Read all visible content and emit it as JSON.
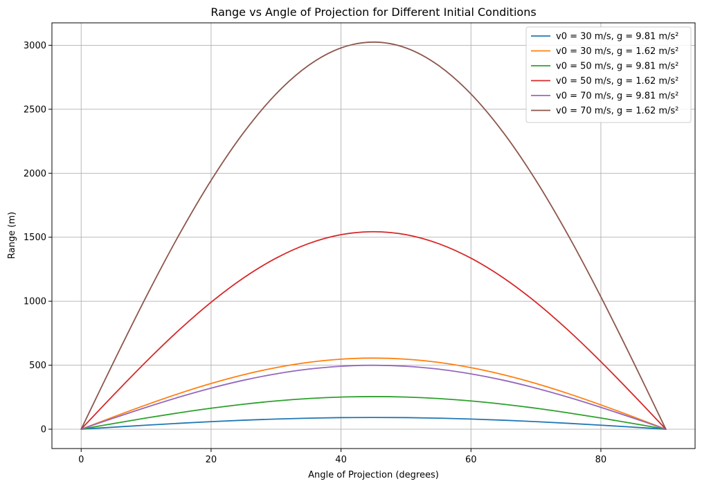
{
  "chart_data": {
    "type": "line",
    "title": "Range vs Angle of Projection for Different Initial Conditions",
    "xlabel": "Angle of Projection (degrees)",
    "ylabel": "Range (m)",
    "xlim": [
      -4.5,
      94.5
    ],
    "ylim": [
      -151.2,
      3175.2
    ],
    "xticks": [
      0,
      20,
      40,
      60,
      80
    ],
    "xtick_labels": [
      "0",
      "20",
      "40",
      "60",
      "80"
    ],
    "yticks": [
      0,
      500,
      1000,
      1500,
      2000,
      2500,
      3000
    ],
    "ytick_labels": [
      "0",
      "500",
      "1000",
      "1500",
      "2000",
      "2500",
      "3000"
    ],
    "grid": true,
    "legend_position": "top-right",
    "x": [
      0,
      5,
      10,
      15,
      20,
      25,
      30,
      35,
      40,
      45,
      50,
      55,
      60,
      65,
      70,
      75,
      80,
      85,
      90
    ],
    "series": [
      {
        "name": "v0 = 30 m/s, g = 9.81 m/s²",
        "color": "#1f77b4",
        "values": [
          0,
          15.9,
          31.4,
          45.9,
          59.0,
          70.3,
          79.5,
          86.2,
          90.4,
          91.7,
          90.4,
          86.2,
          79.5,
          70.3,
          59.0,
          45.9,
          31.4,
          15.9,
          0
        ]
      },
      {
        "name": "v0 = 30 m/s, g = 1.62 m/s²",
        "color": "#ff7f0e",
        "values": [
          0,
          96.5,
          190.0,
          277.8,
          357.2,
          425.7,
          481.1,
          522.1,
          547.2,
          555.6,
          547.2,
          522.1,
          481.1,
          425.7,
          357.2,
          277.8,
          190.0,
          96.5,
          0
        ]
      },
      {
        "name": "v0 = 50 m/s, g = 9.81 m/s²",
        "color": "#2ca02c",
        "values": [
          0,
          44.3,
          87.2,
          127.4,
          163.8,
          195.2,
          220.7,
          239.5,
          251.0,
          254.8,
          251.0,
          239.5,
          220.7,
          195.2,
          163.8,
          127.4,
          87.2,
          44.3,
          0
        ]
      },
      {
        "name": "v0 = 50 m/s, g = 1.62 m/s²",
        "color": "#d62728",
        "values": [
          0,
          268.0,
          527.8,
          771.6,
          992.0,
          1182.2,
          1336.5,
          1450.2,
          1520.0,
          1543.2,
          1520.0,
          1450.2,
          1336.5,
          1182.2,
          992.0,
          771.6,
          527.8,
          268.0,
          0
        ]
      },
      {
        "name": "v0 = 70 m/s, g = 9.81 m/s²",
        "color": "#9467bd",
        "values": [
          0,
          86.7,
          170.8,
          249.7,
          321.0,
          382.6,
          432.5,
          469.3,
          491.9,
          499.5,
          491.9,
          469.3,
          432.5,
          382.6,
          321.0,
          249.7,
          170.8,
          86.7,
          0
        ]
      },
      {
        "name": "v0 = 70 m/s, g = 1.62 m/s²",
        "color": "#8c564b",
        "values": [
          0,
          525.3,
          1034.5,
          1512.3,
          1944.2,
          2317.0,
          2619.6,
          2842.4,
          2979.2,
          3024.7,
          2979.2,
          2842.4,
          2619.6,
          2317.0,
          1944.2,
          1512.3,
          1034.5,
          525.3,
          0
        ]
      }
    ]
  }
}
